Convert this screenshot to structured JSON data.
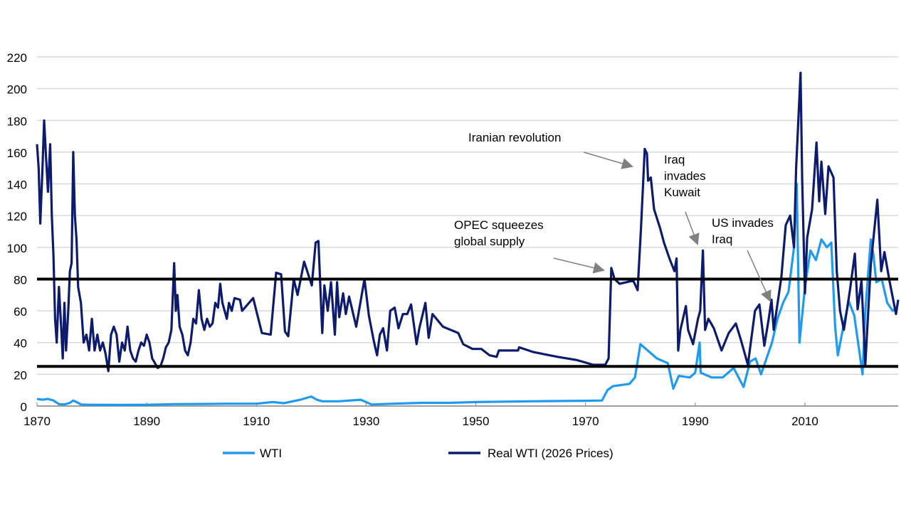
{
  "chart_data": {
    "type": "line",
    "title": "",
    "xlabel": "",
    "ylabel": "",
    "xlim": [
      1870,
      2027
    ],
    "ylim": [
      0,
      220
    ],
    "x_ticks": [
      1870,
      1890,
      1910,
      1930,
      1950,
      1970,
      1990,
      2010
    ],
    "y_ticks": [
      0,
      20,
      40,
      60,
      80,
      100,
      120,
      140,
      160,
      180,
      200,
      220
    ],
    "grid": "horizontal",
    "legend_position": "bottom",
    "reference_lines": [
      80,
      25
    ],
    "reference_line_color": "#000000",
    "series": [
      {
        "name": "WTI",
        "color": "#1E9BF0",
        "points": [
          [
            1870,
            4.5
          ],
          [
            1871,
            4
          ],
          [
            1872,
            4.5
          ],
          [
            1873,
            3.5
          ],
          [
            1874,
            1.2
          ],
          [
            1875,
            1
          ],
          [
            1876,
            2
          ],
          [
            1876.6,
            3.5
          ],
          [
            1877.5,
            2
          ],
          [
            1878,
            1
          ],
          [
            1880,
            0.8
          ],
          [
            1885,
            0.7
          ],
          [
            1890,
            0.8
          ],
          [
            1895,
            1.2
          ],
          [
            1900,
            1.3
          ],
          [
            1905,
            1.5
          ],
          [
            1910,
            1.5
          ],
          [
            1913,
            2.5
          ],
          [
            1915,
            1.8
          ],
          [
            1918,
            4
          ],
          [
            1920,
            6
          ],
          [
            1921,
            4
          ],
          [
            1922,
            3
          ],
          [
            1925,
            3
          ],
          [
            1929,
            4
          ],
          [
            1931,
            1
          ],
          [
            1935,
            1.5
          ],
          [
            1940,
            2
          ],
          [
            1945,
            2
          ],
          [
            1950,
            2.5
          ],
          [
            1960,
            3
          ],
          [
            1970,
            3.3
          ],
          [
            1973,
            3.5
          ],
          [
            1974,
            10
          ],
          [
            1975,
            12.5
          ],
          [
            1978,
            14
          ],
          [
            1979,
            18
          ],
          [
            1980,
            39
          ],
          [
            1981,
            36
          ],
          [
            1983,
            30
          ],
          [
            1985,
            27
          ],
          [
            1986,
            11
          ],
          [
            1987,
            19
          ],
          [
            1989,
            18
          ],
          [
            1990,
            21
          ],
          [
            1990.8,
            40
          ],
          [
            1991,
            21
          ],
          [
            1993,
            18
          ],
          [
            1995,
            18
          ],
          [
            1997,
            24
          ],
          [
            1998.8,
            12
          ],
          [
            2000,
            28
          ],
          [
            2001,
            30
          ],
          [
            2002,
            20
          ],
          [
            2003,
            30
          ],
          [
            2004,
            40
          ],
          [
            2005,
            55
          ],
          [
            2006,
            65
          ],
          [
            2007,
            72
          ],
          [
            2008,
            100
          ],
          [
            2008.5,
            140
          ],
          [
            2009,
            40
          ],
          [
            2010,
            75
          ],
          [
            2011,
            98
          ],
          [
            2012,
            92
          ],
          [
            2013,
            105
          ],
          [
            2014,
            100
          ],
          [
            2014.8,
            103
          ],
          [
            2015.5,
            50
          ],
          [
            2016,
            32
          ],
          [
            2017,
            50
          ],
          [
            2018,
            66
          ],
          [
            2019,
            57
          ],
          [
            2020.5,
            20
          ],
          [
            2021,
            60
          ],
          [
            2022,
            105
          ],
          [
            2022.5,
            95
          ],
          [
            2023,
            78
          ],
          [
            2024,
            80
          ],
          [
            2025,
            65
          ],
          [
            2026,
            60
          ],
          [
            2026.8,
            62
          ]
        ]
      },
      {
        "name": "Real WTI (2026 Prices)",
        "color": "#0D1B6E",
        "points": [
          [
            1870,
            165
          ],
          [
            1870.3,
            150
          ],
          [
            1870.6,
            115
          ],
          [
            1871,
            150
          ],
          [
            1871.3,
            180
          ],
          [
            1871.6,
            160
          ],
          [
            1872,
            135
          ],
          [
            1872.4,
            165
          ],
          [
            1872.7,
            120
          ],
          [
            1873,
            95
          ],
          [
            1873.3,
            55
          ],
          [
            1873.6,
            40
          ],
          [
            1874,
            75
          ],
          [
            1874.4,
            50
          ],
          [
            1874.7,
            30
          ],
          [
            1875,
            65
          ],
          [
            1875.3,
            35
          ],
          [
            1875.7,
            60
          ],
          [
            1876,
            85
          ],
          [
            1876.3,
            90
          ],
          [
            1876.6,
            160
          ],
          [
            1876.9,
            120
          ],
          [
            1877.2,
            105
          ],
          [
            1877.5,
            75
          ],
          [
            1878,
            65
          ],
          [
            1878.5,
            40
          ],
          [
            1879,
            45
          ],
          [
            1879.5,
            35
          ],
          [
            1880,
            55
          ],
          [
            1880.5,
            35
          ],
          [
            1881,
            45
          ],
          [
            1881.5,
            35
          ],
          [
            1882,
            40
          ],
          [
            1882.5,
            33
          ],
          [
            1883,
            22
          ],
          [
            1883.5,
            45
          ],
          [
            1884,
            50
          ],
          [
            1884.5,
            45
          ],
          [
            1885,
            28
          ],
          [
            1885.5,
            40
          ],
          [
            1886,
            35
          ],
          [
            1886.5,
            50
          ],
          [
            1887,
            35
          ],
          [
            1887.5,
            30
          ],
          [
            1888,
            28
          ],
          [
            1888.5,
            35
          ],
          [
            1889,
            40
          ],
          [
            1889.5,
            38
          ],
          [
            1890,
            45
          ],
          [
            1890.5,
            40
          ],
          [
            1891,
            30
          ],
          [
            1891.5,
            27
          ],
          [
            1892,
            24
          ],
          [
            1892.5,
            25
          ],
          [
            1893,
            30
          ],
          [
            1893.5,
            37
          ],
          [
            1894,
            40
          ],
          [
            1894.5,
            48
          ],
          [
            1895,
            90
          ],
          [
            1895.3,
            60
          ],
          [
            1895.6,
            70
          ],
          [
            1896,
            50
          ],
          [
            1896.5,
            45
          ],
          [
            1897,
            35
          ],
          [
            1897.5,
            32
          ],
          [
            1898,
            40
          ],
          [
            1898.5,
            55
          ],
          [
            1899,
            52
          ],
          [
            1899.5,
            73
          ],
          [
            1900,
            55
          ],
          [
            1900.5,
            48
          ],
          [
            1901,
            55
          ],
          [
            1901.5,
            50
          ],
          [
            1902,
            52
          ],
          [
            1902.5,
            65
          ],
          [
            1903,
            62
          ],
          [
            1903.4,
            77
          ],
          [
            1903.8,
            65
          ],
          [
            1904.2,
            60
          ],
          [
            1904.6,
            55
          ],
          [
            1905,
            65
          ],
          [
            1905.5,
            60
          ],
          [
            1906,
            68
          ],
          [
            1907,
            67
          ],
          [
            1907.4,
            60
          ],
          [
            1909.4,
            68
          ],
          [
            1911,
            46
          ],
          [
            1912.6,
            45
          ],
          [
            1913.6,
            84
          ],
          [
            1914.5,
            83
          ],
          [
            1915.2,
            47
          ],
          [
            1915.8,
            44
          ],
          [
            1916.8,
            80
          ],
          [
            1917.5,
            70
          ],
          [
            1918.7,
            91
          ],
          [
            1920.1,
            76
          ],
          [
            1920.8,
            103
          ],
          [
            1921.3,
            104
          ],
          [
            1922,
            46
          ],
          [
            1922.4,
            76
          ],
          [
            1923,
            60
          ],
          [
            1923.6,
            78
          ],
          [
            1924.3,
            45
          ],
          [
            1924.7,
            78
          ],
          [
            1925.1,
            56
          ],
          [
            1925.8,
            71
          ],
          [
            1926.3,
            58
          ],
          [
            1926.9,
            69
          ],
          [
            1928.2,
            50
          ],
          [
            1929.7,
            80
          ],
          [
            1930.5,
            57
          ],
          [
            1931.4,
            41
          ],
          [
            1932,
            32
          ],
          [
            1932.5,
            45
          ],
          [
            1933.1,
            49
          ],
          [
            1933.8,
            35
          ],
          [
            1934.4,
            60
          ],
          [
            1935.2,
            62
          ],
          [
            1935.9,
            49
          ],
          [
            1936.7,
            58
          ],
          [
            1937.5,
            58
          ],
          [
            1938.2,
            64
          ],
          [
            1939.2,
            39
          ],
          [
            1939.7,
            49
          ],
          [
            1940.8,
            65
          ],
          [
            1941.4,
            43
          ],
          [
            1942.1,
            58
          ],
          [
            1944,
            50
          ],
          [
            1946.8,
            46
          ],
          [
            1947.7,
            39
          ],
          [
            1949.4,
            36
          ],
          [
            1951,
            36
          ],
          [
            1952.5,
            32
          ],
          [
            1953.8,
            31
          ],
          [
            1954.2,
            35
          ],
          [
            1957.7,
            35
          ],
          [
            1957.9,
            37
          ],
          [
            1960.5,
            34
          ],
          [
            1964.9,
            31
          ],
          [
            1968.4,
            29
          ],
          [
            1971.4,
            26
          ],
          [
            1973.6,
            26
          ],
          [
            1974.2,
            30
          ],
          [
            1974.7,
            87
          ],
          [
            1975.3,
            80
          ],
          [
            1976.2,
            77
          ],
          [
            1978.7,
            79
          ],
          [
            1979.5,
            73
          ],
          [
            1980.1,
            111
          ],
          [
            1980.8,
            162
          ],
          [
            1981.2,
            159
          ],
          [
            1981.4,
            142
          ],
          [
            1981.9,
            144
          ],
          [
            1982.5,
            124
          ],
          [
            1983.6,
            112
          ],
          [
            1984.3,
            103
          ],
          [
            1985.3,
            93
          ],
          [
            1986.2,
            85
          ],
          [
            1986.6,
            93
          ],
          [
            1986.9,
            35
          ],
          [
            1987.3,
            48
          ],
          [
            1988.3,
            63
          ],
          [
            1988.7,
            48
          ],
          [
            1989.6,
            39
          ],
          [
            1990.5,
            55
          ],
          [
            1990.9,
            60
          ],
          [
            1991.4,
            98
          ],
          [
            1991.8,
            48
          ],
          [
            1992.4,
            55
          ],
          [
            1993.4,
            49
          ],
          [
            1994.8,
            35
          ],
          [
            1996.1,
            46
          ],
          [
            1997.4,
            52
          ],
          [
            1998.3,
            42
          ],
          [
            1999.6,
            26
          ],
          [
            2000.9,
            60
          ],
          [
            2001.7,
            64
          ],
          [
            2002.6,
            38
          ],
          [
            2003.4,
            55
          ],
          [
            2003.9,
            67
          ],
          [
            2004.3,
            48
          ],
          [
            2005.7,
            81
          ],
          [
            2006.5,
            114
          ],
          [
            2007.3,
            120
          ],
          [
            2008,
            100
          ],
          [
            2008.4,
            150
          ],
          [
            2009.2,
            210
          ],
          [
            2009.5,
            143
          ],
          [
            2010,
            71
          ],
          [
            2010.4,
            106
          ],
          [
            2011.3,
            124
          ],
          [
            2012.1,
            166
          ],
          [
            2012.6,
            129
          ],
          [
            2013,
            154
          ],
          [
            2013.7,
            121
          ],
          [
            2014.3,
            151
          ],
          [
            2015.2,
            144
          ],
          [
            2015.8,
            85
          ],
          [
            2016.4,
            60
          ],
          [
            2017.1,
            48
          ],
          [
            2018.2,
            73
          ],
          [
            2019.1,
            96
          ],
          [
            2019.6,
            61
          ],
          [
            2020.3,
            79
          ],
          [
            2021,
            26
          ],
          [
            2022,
            89
          ],
          [
            2023.2,
            130
          ],
          [
            2023.9,
            85
          ],
          [
            2024.5,
            97
          ],
          [
            2025.4,
            79
          ],
          [
            2026.6,
            58
          ],
          [
            2027,
            67
          ]
        ]
      }
    ],
    "annotations": [
      {
        "lines": [
          "Iranian revolution"
        ]
      },
      {
        "lines": [
          "OPEC squeezes",
          "global supply"
        ]
      },
      {
        "lines": [
          "Iraq",
          "invades",
          "Kuwait"
        ]
      },
      {
        "lines": [
          "US invades",
          "Iraq"
        ]
      }
    ],
    "annotation_arrow_color": "#808080"
  }
}
